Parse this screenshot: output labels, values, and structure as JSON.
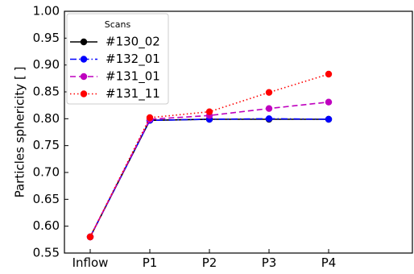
{
  "chart_data": {
    "type": "line",
    "categories": [
      "Inflow",
      "P1",
      "P2",
      "P3",
      "P4"
    ],
    "ylabel": "Particles sphericity  [   ]",
    "xlabel": "",
    "ylim": [
      0.55,
      1.0
    ],
    "yticks": [
      0.55,
      0.6,
      0.65,
      0.7,
      0.75,
      0.8,
      0.85,
      0.9,
      0.95,
      1.0
    ],
    "ytick_labels": [
      "0.55",
      "0.60",
      "0.65",
      "0.70",
      "0.75",
      "0.80",
      "0.85",
      "0.90",
      "0.95",
      "1.00"
    ],
    "grid": false,
    "legend": {
      "title": "Scans",
      "placement": "top-left"
    },
    "series": [
      {
        "name": "#130_02",
        "color": "#000000",
        "line_style": "solid",
        "values": [
          0.58,
          0.797,
          0.799,
          0.799,
          0.799
        ]
      },
      {
        "name": "#132_01",
        "color": "#0000ff",
        "line_style": "dashdot",
        "values": [
          0.58,
          0.797,
          0.799,
          0.8,
          0.799
        ]
      },
      {
        "name": "#131_01",
        "color": "#bf00bf",
        "line_style": "dashed",
        "values": [
          0.58,
          0.799,
          0.806,
          0.819,
          0.831
        ]
      },
      {
        "name": "#131_11",
        "color": "#ff0000",
        "line_style": "dotted",
        "values": [
          0.58,
          0.802,
          0.813,
          0.849,
          0.883
        ]
      }
    ]
  }
}
